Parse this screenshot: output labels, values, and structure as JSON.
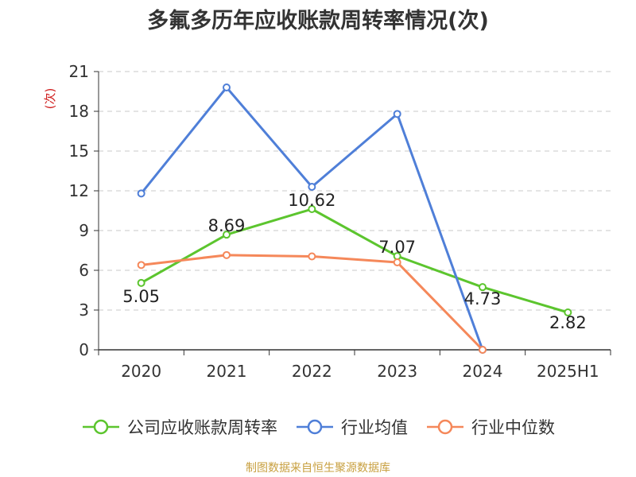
{
  "title": "多氟多历年应收账款周转率情况(次)",
  "source_note": "制图数据来自恒生聚源数据库",
  "chart_data": {
    "type": "line",
    "title": "多氟多历年应收账款周转率情况(次)",
    "ylabel": "(次)",
    "xlabel": "",
    "categories": [
      "2020",
      "2021",
      "2022",
      "2023",
      "2024",
      "2025H1"
    ],
    "ylim": [
      0,
      21
    ],
    "yticks": [
      0,
      3,
      6,
      9,
      12,
      15,
      18,
      21
    ],
    "grid": true,
    "legend_position": "bottom",
    "series": [
      {
        "name": "公司应收账款周转率",
        "color": "#5cc52e",
        "show_labels": true,
        "values": [
          5.05,
          8.69,
          10.62,
          7.07,
          4.73,
          2.82
        ]
      },
      {
        "name": "行业均值",
        "color": "#4f7fd8",
        "show_labels": false,
        "values": [
          11.8,
          19.8,
          12.3,
          17.8,
          0.0,
          null
        ]
      },
      {
        "name": "行业中位数",
        "color": "#f5885a",
        "show_labels": false,
        "values": [
          6.4,
          7.15,
          7.05,
          6.6,
          0.0,
          null
        ]
      }
    ]
  }
}
